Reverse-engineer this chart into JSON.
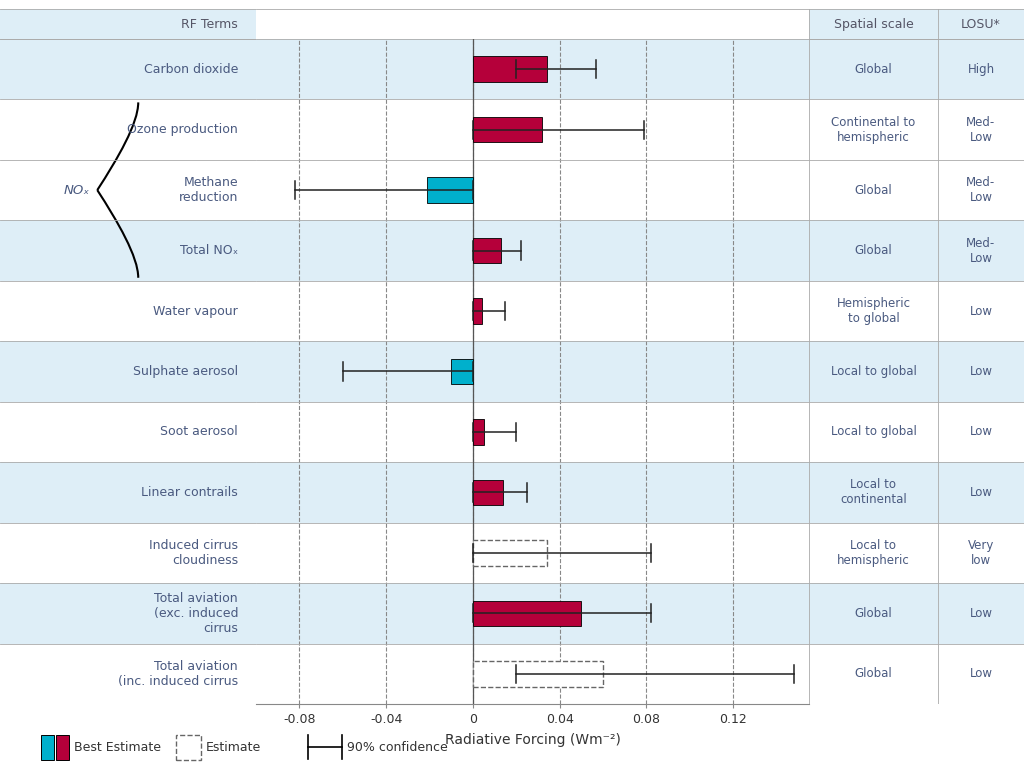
{
  "rows": [
    {
      "label": "Carbon dioxide",
      "bar_low": 0.0,
      "bar_high": 0.034,
      "err_low": 0.02,
      "err_high": 0.057,
      "bar_color": "#b5003a",
      "bar_type": "solid",
      "spatial": "Global",
      "losu": "High",
      "bg": "#deeef7",
      "nox_group": false
    },
    {
      "label": "Ozone production",
      "bar_low": 0.0,
      "bar_high": 0.032,
      "err_low": 0.0,
      "err_high": 0.079,
      "bar_color": "#b5003a",
      "bar_type": "solid",
      "spatial": "Continental to\nhemispheric",
      "losu": "Med-\nLow",
      "bg": "#ffffff",
      "nox_group": true
    },
    {
      "label": "Methane\nreduction",
      "bar_low": -0.021,
      "bar_high": 0.0,
      "err_low": -0.082,
      "err_high": 0.0,
      "bar_color": "#00b0cc",
      "bar_type": "solid",
      "spatial": "Global",
      "losu": "Med-\nLow",
      "bg": "#ffffff",
      "nox_group": true
    },
    {
      "label": "Total NOₓ",
      "bar_low": 0.0,
      "bar_high": 0.013,
      "err_low": 0.0,
      "err_high": 0.022,
      "bar_color": "#b5003a",
      "bar_type": "solid",
      "spatial": "Global",
      "losu": "Med-\nLow",
      "bg": "#deeef7",
      "nox_group": true
    },
    {
      "label": "Water vapour",
      "bar_low": 0.0,
      "bar_high": 0.004,
      "err_low": 0.0,
      "err_high": 0.015,
      "bar_color": "#b5003a",
      "bar_type": "solid",
      "spatial": "Hemispheric\nto global",
      "losu": "Low",
      "bg": "#ffffff",
      "nox_group": false
    },
    {
      "label": "Sulphate aerosol",
      "bar_low": -0.01,
      "bar_high": 0.0,
      "err_low": -0.06,
      "err_high": 0.0,
      "bar_color": "#00b0cc",
      "bar_type": "solid",
      "spatial": "Local to global",
      "losu": "Low",
      "bg": "#deeef7",
      "nox_group": false
    },
    {
      "label": "Soot aerosol",
      "bar_low": 0.0,
      "bar_high": 0.005,
      "err_low": 0.0,
      "err_high": 0.02,
      "bar_color": "#b5003a",
      "bar_type": "solid",
      "spatial": "Local to global",
      "losu": "Low",
      "bg": "#ffffff",
      "nox_group": false
    },
    {
      "label": "Linear contrails",
      "bar_low": 0.0,
      "bar_high": 0.014,
      "err_low": 0.0,
      "err_high": 0.025,
      "bar_color": "#b5003a",
      "bar_type": "solid",
      "spatial": "Local to\ncontinental",
      "losu": "Low",
      "bg": "#deeef7",
      "nox_group": false
    },
    {
      "label": "Induced cirrus\ncloudiness",
      "bar_low": 0.0,
      "bar_high": 0.034,
      "err_low": 0.0,
      "err_high": 0.082,
      "bar_color": "#b5003a",
      "bar_type": "dashed",
      "spatial": "Local to\nhemispheric",
      "losu": "Very\nlow",
      "bg": "#ffffff",
      "nox_group": false
    },
    {
      "label": "Total aviation\n(exc. induced\ncirrus",
      "bar_low": 0.0,
      "bar_high": 0.05,
      "err_low": 0.0,
      "err_high": 0.082,
      "bar_color": "#b5003a",
      "bar_type": "solid",
      "spatial": "Global",
      "losu": "Low",
      "bg": "#deeef7",
      "nox_group": false
    },
    {
      "label": "Total aviation\n(inc. induced cirrus",
      "bar_low": 0.0,
      "bar_high": 0.06,
      "err_low": 0.02,
      "err_high": 0.148,
      "bar_color": "#b5003a",
      "bar_type": "dashed",
      "spatial": "Global",
      "losu": "Low",
      "bg": "#ffffff",
      "nox_group": false
    }
  ],
  "xlim": [
    -0.1,
    0.155
  ],
  "xticks": [
    -0.08,
    -0.04,
    0.0,
    0.04,
    0.08,
    0.12
  ],
  "xtick_labels": [
    "-0.08",
    "-0.04",
    "0",
    "0.04",
    "0.08",
    "0.12"
  ],
  "xlabel": "Radiative Forcing (Wm⁻²)",
  "bar_height": 0.42,
  "bg_colors": [
    "#deeef7",
    "#ffffff"
  ],
  "text_color_dark": "#4a5a80",
  "text_color_header": "#555566",
  "grid_line_color": "#aaaaaa",
  "dashed_line_color": "#888888",
  "zero_line_color": "#777777",
  "nox_indices": [
    1,
    2,
    3
  ],
  "nox_label_row": 2,
  "figure_width": 10.24,
  "figure_height": 7.78
}
